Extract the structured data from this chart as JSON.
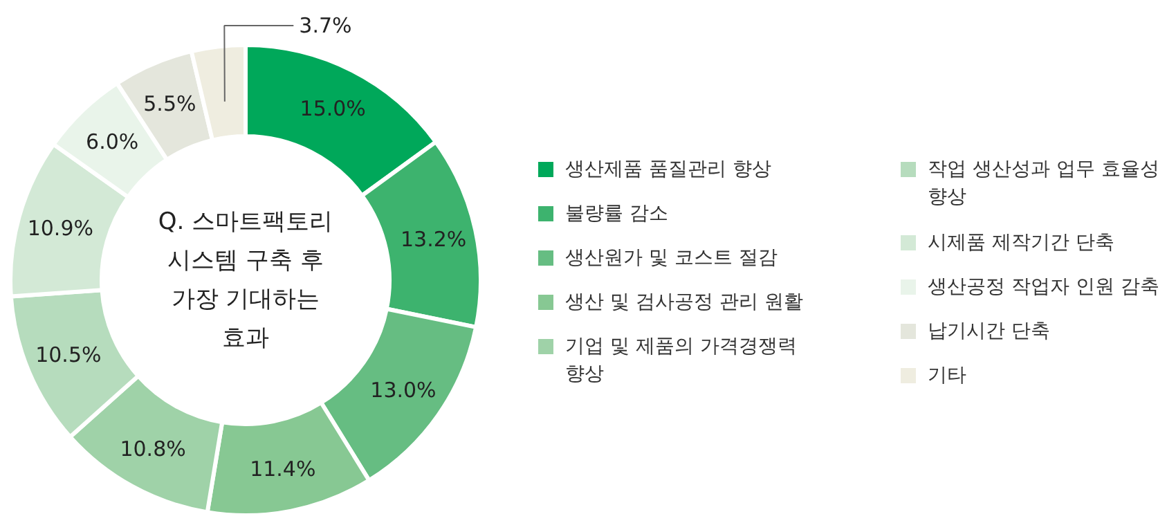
{
  "chart_data": {
    "type": "donut",
    "title": "Q. 스마트팩토리 시스템 구축 후 가장 기대하는 효과",
    "categories": [
      "생산제품 품질관리 향상",
      "불량률 감소",
      "생산원가 및 코스트 절감",
      "생산 및 검사공정 관리 원활",
      "기업 및 제품의 가격경쟁력 향상",
      "작업 생산성과 업무 효율성 향상",
      "시제품 제작기간 단축",
      "생산공정 작업자 인원 감축",
      "납기시간 단축",
      "기타"
    ],
    "values": [
      15.0,
      13.2,
      13.0,
      11.4,
      10.8,
      10.5,
      10.9,
      6.0,
      5.5,
      3.7
    ],
    "value_labels": [
      "15.0%",
      "13.2%",
      "13.0%",
      "11.4%",
      "10.8%",
      "10.5%",
      "10.9%",
      "6.0%",
      "5.5%",
      "3.7%"
    ],
    "colors": [
      "#00a85a",
      "#3db36e",
      "#66bd82",
      "#87c893",
      "#9fd2a8",
      "#b6dcbd",
      "#d3e9d6",
      "#e9f4ea",
      "#e4e6dc",
      "#efede0"
    ],
    "legend": "right"
  }
}
